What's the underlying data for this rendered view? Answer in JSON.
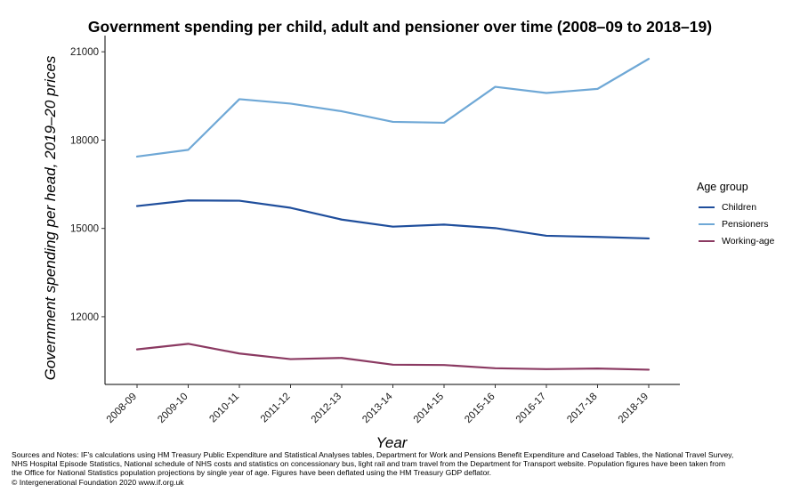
{
  "chart_data": {
    "type": "line",
    "title": "Government spending per child, adult and pensioner over time (2008–09 to 2018–19)",
    "xlabel": "Year",
    "ylabel": "Government spending per head, 2019–20 prices",
    "categories": [
      "2008-09",
      "2009-10",
      "2010-11",
      "2011-12",
      "2012-13",
      "2013-14",
      "2014-15",
      "2015-16",
      "2016-17",
      "2017-18",
      "2018-19"
    ],
    "y_ticks": [
      "12000",
      "15000",
      "18000",
      "21000"
    ],
    "y_tick_values": [
      12000,
      15000,
      18000,
      21000
    ],
    "ylim": [
      9700,
      21550
    ],
    "grid": false,
    "legend": {
      "title": "Age group",
      "position": "right"
    },
    "series": [
      {
        "name": "Children",
        "color": "#1f4e9c",
        "values": [
          15760,
          15950,
          15940,
          15700,
          15300,
          15060,
          15130,
          15010,
          14750,
          14710,
          14660
        ]
      },
      {
        "name": "Pensioners",
        "color": "#6fa8d6",
        "values": [
          17440,
          17670,
          19390,
          19240,
          18980,
          18620,
          18590,
          19810,
          19600,
          19740,
          20760
        ]
      },
      {
        "name": "Working-age",
        "color": "#8b3a62",
        "values": [
          10890,
          11080,
          10750,
          10560,
          10600,
          10370,
          10360,
          10250,
          10220,
          10240,
          10200
        ]
      }
    ]
  },
  "notes": {
    "line1": "Sources and Notes: IF's calculations using HM Treasury Public Expenditure and Statistical Analyses tables, Department for Work and Pensions Benefit Expenditure and Caseload Tables, the National Travel Survey,",
    "line2": "NHS Hospital Episode Statistics, National schedule of NHS costs and statistics on concessionary bus, light rail and tram travel from the Department for Transport website. Population figures have been taken from",
    "line3": "the Office for National Statistics population projections by single year of age. Figures have been deflated using the HM Treasury GDP deflator.",
    "line4": "© Intergenerational Foundation 2020 www.if.org.uk"
  }
}
